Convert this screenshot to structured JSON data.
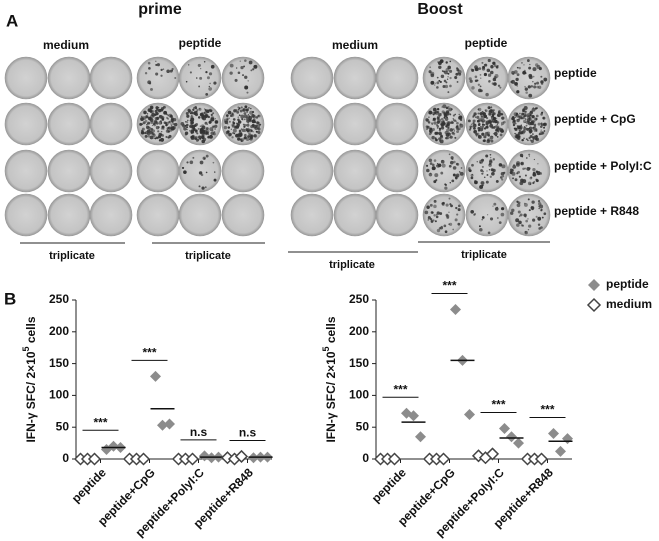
{
  "panel_a": {
    "label": "A",
    "prime": "prime",
    "boost": "Boost",
    "column_labels": [
      "medium",
      "peptide",
      "medium",
      "peptide"
    ],
    "row_labels": [
      "peptide",
      "peptide + CpG",
      "peptide + PolyI:C",
      "peptide + R848"
    ],
    "triplicate": [
      "triplicate",
      "triplicate",
      "triplicate",
      "triplicate"
    ]
  },
  "panel_b_label": "B",
  "chart_data": [
    {
      "type": "dot",
      "ylabel": [
        "IFN-γ SFC/ 2×10",
        "5",
        " cells"
      ],
      "categories": [
        "peptide",
        "peptide+CpG",
        "peptide+PolyI:C",
        "peptide+R848"
      ],
      "ylim": [
        0,
        250
      ],
      "yticks": [
        0,
        50,
        100,
        150,
        200,
        250
      ],
      "series": [
        {
          "name": "medium",
          "color": "#777777",
          "filled": false,
          "values": [
            [
              0,
              0,
              0
            ],
            [
              0,
              0,
              0
            ],
            [
              0,
              0,
              0
            ],
            [
              2,
              0,
              4
            ]
          ]
        },
        {
          "name": "peptide",
          "color": "#8c8c8c",
          "filled": true,
          "values": [
            [
              15,
              20,
              18
            ],
            [
              130,
              53,
              55
            ],
            [
              5,
              2,
              3
            ],
            [
              2,
              3,
              3
            ]
          ],
          "means": [
            18,
            79,
            3,
            3
          ]
        }
      ],
      "annotations": [
        "***",
        "***",
        "n.s",
        "n.s"
      ]
    },
    {
      "type": "dot",
      "ylabel": [
        "IFN-γ SFC/ 2×10",
        "5",
        " cells"
      ],
      "categories": [
        "peptide",
        "peptide+CpG",
        "peptide+PolyI:C",
        "peptide+R848"
      ],
      "ylim": [
        0,
        250
      ],
      "yticks": [
        0,
        50,
        100,
        150,
        200,
        250
      ],
      "series": [
        {
          "name": "medium",
          "color": "#777777",
          "filled": false,
          "values": [
            [
              0,
              0,
              0
            ],
            [
              0,
              0,
              0
            ],
            [
              5,
              2,
              8
            ],
            [
              0,
              0,
              0
            ]
          ]
        },
        {
          "name": "peptide",
          "color": "#8c8c8c",
          "filled": true,
          "values": [
            [
              72,
              68,
              35
            ],
            [
              235,
              155,
              70
            ],
            [
              48,
              35,
              25
            ],
            [
              40,
              12,
              32
            ]
          ],
          "means": [
            58,
            155,
            33,
            28
          ]
        }
      ],
      "annotations": [
        "***",
        "***",
        "***",
        "***"
      ],
      "legend": "upper right"
    }
  ]
}
